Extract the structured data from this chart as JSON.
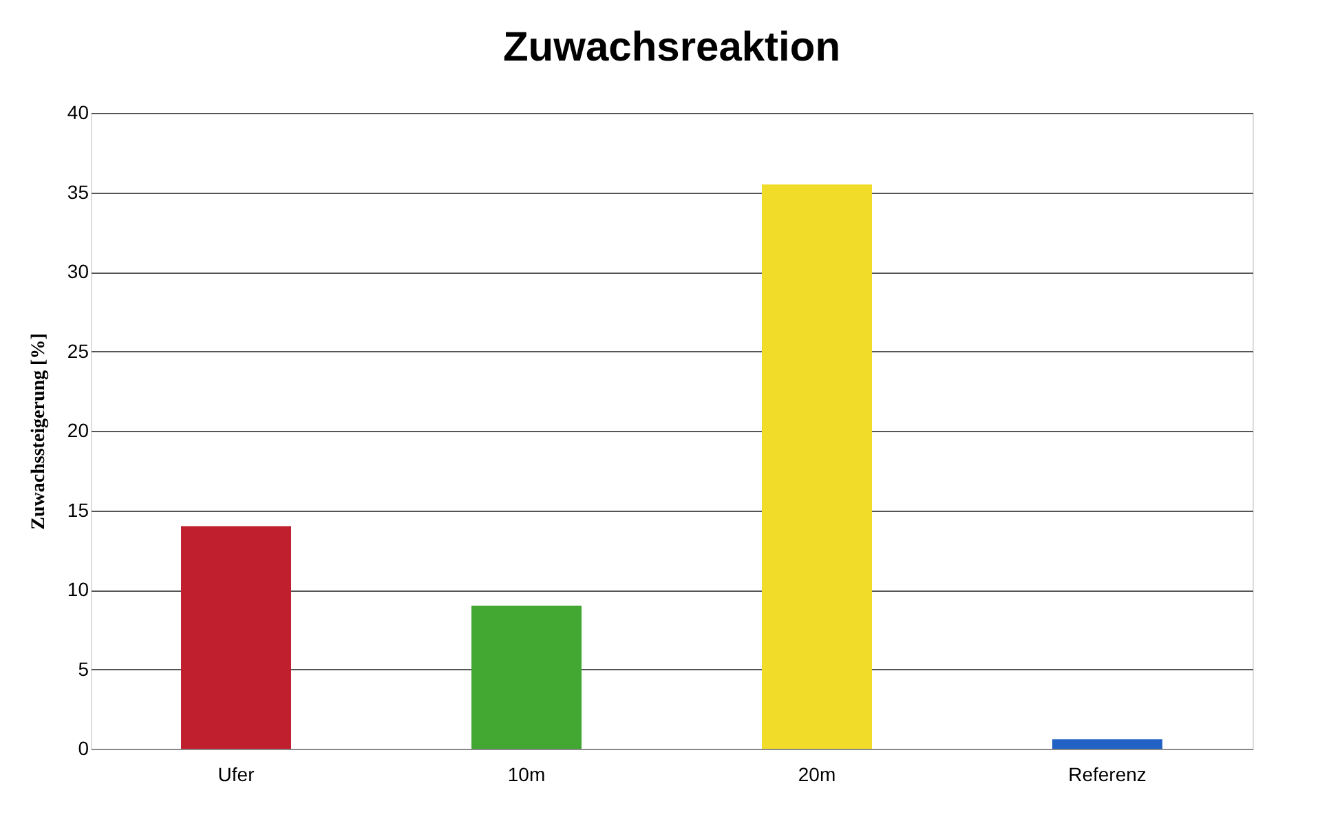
{
  "chart_data": {
    "type": "bar",
    "title": "Zuwachsreaktion",
    "ylabel": "Zuwachssteigerung [%]",
    "categories": [
      "Ufer",
      "10m",
      "20m",
      "Referenz"
    ],
    "values": [
      14,
      9,
      35.5,
      0.6
    ],
    "colors": [
      "#c0202e",
      "#42a832",
      "#f2dc2a",
      "#2262c4"
    ],
    "ylim": [
      0,
      40
    ],
    "yticks": [
      0,
      5,
      10,
      15,
      20,
      25,
      30,
      35,
      40
    ],
    "grid": "y"
  }
}
